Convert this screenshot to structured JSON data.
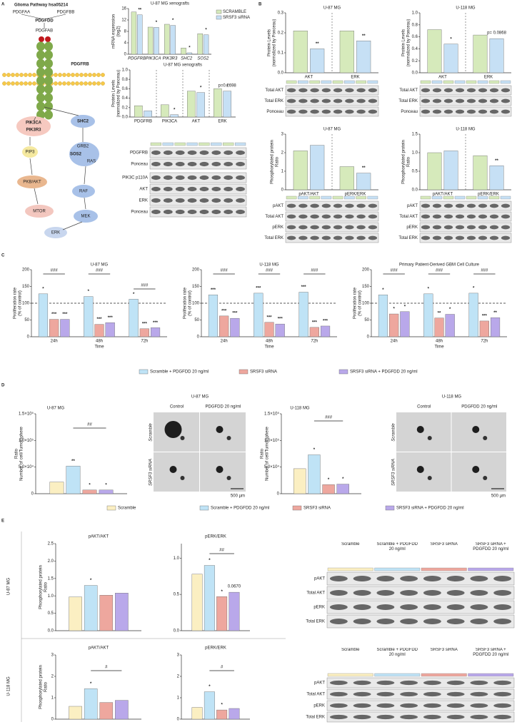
{
  "panels": [
    "A",
    "B",
    "C",
    "D",
    "E"
  ],
  "pathway": {
    "title": "Glioma Pathway hsa05214",
    "nodes": [
      "PDGFAA",
      "PDGFBB",
      "PDGFDD",
      "PDGFAB",
      "PDGFRB",
      "PIK3CA",
      "PIK3R3",
      "SHC2",
      "PIP3",
      "GRB2",
      "SOS2",
      "RAS",
      "PKB/AKT",
      "RAF",
      "MTOR",
      "MEK",
      "ERK"
    ]
  },
  "blots": [
    {
      "rows": [
        "PDGFRB",
        "Ponceau"
      ]
    },
    {
      "rows": [
        "PIK3C p110A",
        "AKT",
        "ERK",
        "Ponceau"
      ]
    },
    {
      "rows": [
        "Total AKT",
        "Total ERK",
        "Ponceau"
      ]
    },
    {
      "rows": [
        "Total AKT",
        "Total ERK",
        "Ponceau"
      ]
    },
    {
      "rows": [
        "pAKT",
        "Total AKT",
        "pERK",
        "Total ERK"
      ]
    },
    {
      "rows": [
        "pAKT",
        "Total AKT",
        "pERK",
        "Total ERK"
      ]
    },
    {
      "lanes": [
        "Scramble",
        "Scramble + PDGFDD 20 ng/ml",
        "SRSF3 siRNA",
        "SRSF3 siRNA + PDGFDD 20 ng/ml"
      ],
      "rows": [
        "pAKT",
        "Total AKT",
        "pERK",
        "Total ERK"
      ]
    },
    {
      "lanes": [
        "Scramble",
        "Scramble + PDGFDD 20 ng/ml",
        "SRSF3 siRNA",
        "SRSF3 siRNA + PDGFDD 20 ng/ml"
      ],
      "rows": [
        "pAKT",
        "Total AKT",
        "pERK",
        "Total ERK"
      ]
    }
  ],
  "spheres": [
    {
      "title": "U-87 MG",
      "cols": [
        "Control",
        "PDGFDD 20 ng/ml"
      ],
      "rows": [
        "Scramble",
        "SRSF3 siRNA"
      ],
      "scale": "500 µm"
    },
    {
      "title": "U-118 MG",
      "cols": [
        "Control",
        "PDGFDD 20 ng/ml"
      ],
      "rows": [
        "Scramble",
        "SRSF3 siRNA"
      ],
      "scale": "500 µm"
    }
  ],
  "row_labels": [
    "U-87 MG",
    "U-118 MG"
  ],
  "chart_data": [
    {
      "type": "bar",
      "title": "U-87 MG xenografts",
      "ylabel": [
        "mRNA expression",
        "(log2)"
      ],
      "categories": [
        "PDGFRB",
        "PIK3CA",
        "PIK3R3",
        "SHC2",
        "SOS2"
      ],
      "ylim": [
        0,
        16
      ],
      "yticks": [
        0,
        4,
        8,
        12,
        16
      ],
      "series": [
        {
          "name": "SCRAMBLE",
          "color": "#d6eabb",
          "values": [
            14.8,
            9.5,
            10.5,
            2.2,
            7.2
          ],
          "significance": [
            null,
            null,
            null,
            null,
            null
          ]
        },
        {
          "name": "SRSF3 siRNA",
          "color": "#c6e0f5",
          "values": [
            13.8,
            9.4,
            10.1,
            0.5,
            6.8
          ],
          "significance": [
            "**",
            "*",
            "*",
            "*",
            "*"
          ]
        }
      ]
    },
    {
      "type": "bar",
      "title": "U-87 MG xenografts",
      "ylabel": [
        "Protein Levels",
        "(normalized by Ponceau)"
      ],
      "categories": [
        "PDGFRB",
        "PIK3CA",
        "AKT",
        "ERK"
      ],
      "ylim": [
        0,
        1
      ],
      "yticks": [
        {
          "value": 0,
          "label": "0.0"
        },
        {
          "value": 0.2,
          "label": "0.2"
        },
        {
          "value": 0.4,
          "label": "0.4"
        },
        {
          "value": 0.6,
          "label": "0.6"
        },
        {
          "value": 0.8,
          "label": "0.8"
        },
        {
          "value": 1,
          "label": "1.0"
        }
      ],
      "note": "p=0.2698",
      "series": [
        {
          "name": "SCRAMBLE",
          "color": "#d6eabb",
          "values": [
            0.24,
            0.26,
            0.55,
            0.6
          ],
          "significance": [
            null,
            null,
            null,
            null
          ]
        },
        {
          "name": "SRSF3 siRNA",
          "color": "#c6e0f5",
          "values": [
            0.13,
            0.05,
            0.52,
            0.55
          ],
          "significance": [
            null,
            "*",
            "*",
            "*"
          ]
        }
      ]
    },
    {
      "type": "bar",
      "title": "U-87 MG",
      "ylabel": [
        "Protein Levels",
        "(normalized by Ponceau)"
      ],
      "categories": [
        "AKT",
        "ERK"
      ],
      "ylim": [
        0,
        0.3
      ],
      "yticks": [
        {
          "value": 0,
          "label": "0.0"
        },
        0.1,
        0.2,
        0.3
      ],
      "series": [
        {
          "name": "SCRAMBLE",
          "color": "#d6eabb",
          "values": [
            0.21,
            0.21
          ],
          "significance": [
            null,
            null
          ]
        },
        {
          "name": "SRSF3 siRNA",
          "color": "#c6e0f5",
          "values": [
            0.12,
            0.16
          ],
          "significance": [
            "**",
            "**"
          ]
        }
      ]
    },
    {
      "type": "bar",
      "title": "U-118 MG",
      "ylabel": [
        "Protein Levels",
        "(normalized by Ponceau)"
      ],
      "categories": [
        "AKT",
        "ERK"
      ],
      "ylim": [
        0,
        1
      ],
      "yticks": [
        {
          "value": 0,
          "label": "0.0"
        },
        0.2,
        0.4,
        0.6,
        0.8,
        {
          "value": 1,
          "label": "1.0"
        }
      ],
      "note": "p= 0.0868",
      "series": [
        {
          "name": "SCRAMBLE",
          "color": "#d6eabb",
          "values": [
            0.72,
            0.63
          ],
          "significance": [
            null,
            null
          ]
        },
        {
          "name": "SRSF3 siRNA",
          "color": "#c6e0f5",
          "values": [
            0.48,
            0.57
          ],
          "significance": [
            "*",
            null
          ]
        }
      ]
    },
    {
      "type": "bar",
      "title": "U-87 MG",
      "ylabel": [
        "Phosphorylated protein",
        "Ratio"
      ],
      "categories": [
        "pAKT/AKT",
        "pERK/ERK"
      ],
      "ylim": [
        0,
        3
      ],
      "yticks": [
        0,
        1,
        2,
        3
      ],
      "series": [
        {
          "name": "SCRAMBLE",
          "color": "#d6eabb",
          "values": [
            2.1,
            1.25
          ],
          "significance": [
            null,
            null
          ]
        },
        {
          "name": "SRSF3 siRNA",
          "color": "#c6e0f5",
          "values": [
            2.4,
            0.9
          ],
          "significance": [
            null,
            "**"
          ]
        }
      ]
    },
    {
      "type": "bar",
      "title": "U-118 MG",
      "ylabel": [
        "Phosphorylated protein",
        "Ratio"
      ],
      "categories": [
        "pAKT/AKT",
        "pERK/ERK"
      ],
      "ylim": [
        0,
        1.5
      ],
      "yticks": [
        {
          "value": 0,
          "label": "0.0"
        },
        0.5,
        {
          "value": 1,
          "label": "1.0"
        },
        1.5
      ],
      "series": [
        {
          "name": "SCRAMBLE",
          "color": "#d6eabb",
          "values": [
            1.0,
            0.92
          ],
          "significance": [
            null,
            null
          ]
        },
        {
          "name": "SRSF3 siRNA",
          "color": "#c6e0f5",
          "values": [
            1.05,
            0.65
          ],
          "significance": [
            null,
            "**"
          ]
        }
      ]
    },
    {
      "type": "bar",
      "title": "U-87 MG",
      "ylabel": [
        "Proliferation rate",
        "(% of control)"
      ],
      "xlabel": "Time",
      "categories": [
        "24h",
        "48h",
        "72h"
      ],
      "ylim": [
        0,
        200
      ],
      "yticks": [
        0,
        50,
        100,
        150,
        200
      ],
      "refline": 100,
      "brackets": [
        "###",
        "###",
        "###"
      ],
      "series": [
        {
          "name": "Scramble + PDGFDD 20 ng/ml",
          "color": "#bfe3f6",
          "values": [
            128,
            120,
            112
          ],
          "significance": [
            "*",
            "*",
            "*"
          ]
        },
        {
          "name": "SRSF3 siRNA",
          "color": "#eea79e",
          "values": [
            52,
            37,
            24
          ],
          "significance": [
            "***",
            "***",
            "***"
          ]
        },
        {
          "name": "SRSF3 siRNA + PDGFDD 20 ng/ml",
          "color": "#b9a8ea",
          "values": [
            52,
            42,
            27
          ],
          "significance": [
            "***",
            "***",
            "***"
          ]
        }
      ]
    },
    {
      "type": "bar",
      "title": "U-118 MG",
      "ylabel": [
        "Proliferation rate",
        "(% of control)"
      ],
      "xlabel": "Time",
      "categories": [
        "24h",
        "48h",
        "72h"
      ],
      "ylim": [
        0,
        200
      ],
      "yticks": [
        0,
        50,
        100,
        150,
        200
      ],
      "refline": 100,
      "brackets": [
        "###",
        "###",
        "###"
      ],
      "series": [
        {
          "name": "Scramble + PDGFDD 20 ng/ml",
          "color": "#bfe3f6",
          "values": [
            125,
            130,
            133
          ],
          "significance": [
            "***",
            "***",
            "***"
          ]
        },
        {
          "name": "SRSF3 siRNA",
          "color": "#eea79e",
          "values": [
            62,
            43,
            28
          ],
          "significance": [
            "***",
            "***",
            "***"
          ]
        },
        {
          "name": "SRSF3 siRNA + PDGFDD 20 ng/ml",
          "color": "#b9a8ea",
          "values": [
            55,
            38,
            32
          ],
          "significance": [
            "***",
            "***",
            "***"
          ]
        }
      ]
    },
    {
      "type": "bar",
      "title": "Primary Patient-Derived GBM Cell Culture",
      "ylabel": [
        "Proliferation rate",
        "(% of control)"
      ],
      "xlabel": "Time",
      "categories": [
        "24h",
        "48h",
        "72h"
      ],
      "ylim": [
        0,
        200
      ],
      "yticks": [
        0,
        50,
        100,
        150,
        200
      ],
      "refline": 100,
      "brackets": [
        "###",
        "###",
        "###"
      ],
      "series": [
        {
          "name": "Scramble + PDGFDD 20 ng/ml",
          "color": "#bfe3f6",
          "values": [
            125,
            128,
            130
          ],
          "significance": [
            "*",
            "*",
            "*"
          ]
        },
        {
          "name": "SRSF3 siRNA",
          "color": "#eea79e",
          "values": [
            68,
            56,
            47
          ],
          "significance": [
            "*",
            "**",
            "***"
          ]
        },
        {
          "name": "SRSF3 siRNA + PDGFDD 20 ng/ml",
          "color": "#b9a8ea",
          "values": [
            75,
            67,
            57
          ],
          "significance": [
            "*",
            "*",
            "**"
          ]
        }
      ]
    },
    {
      "type": "bar",
      "title": "U-87 MG",
      "ylabel": [
        "Ratio",
        "Number of cell/Tumorsphere"
      ],
      "categories": [
        null
      ],
      "ylim": [
        0,
        150000
      ],
      "yticks": [
        0,
        {
          "value": 50000,
          "label": "5.0×10⁴"
        },
        {
          "value": 100000,
          "label": "1.0×10⁵"
        },
        {
          "value": 150000,
          "label": "1.5×10⁵"
        }
      ],
      "brackets": [
        "##"
      ],
      "series": [
        {
          "name": "Scramble",
          "color": "#fbefc2",
          "values": [
            22000
          ],
          "significance": [
            null
          ]
        },
        {
          "name": "Scramble + PDGFDD 20 ng/ml",
          "color": "#bfe3f6",
          "values": [
            52000
          ],
          "significance": [
            "**"
          ]
        },
        {
          "name": "SRSF3 siRNA",
          "color": "#eea79e",
          "values": [
            7000
          ],
          "significance": [
            "*"
          ]
        },
        {
          "name": "SRSF3 siRNA + PDGFDD 20 ng/ml",
          "color": "#b9a8ea",
          "values": [
            7000
          ],
          "significance": [
            "*"
          ]
        }
      ]
    },
    {
      "type": "bar",
      "title": "U-118 MG",
      "ylabel": [
        "Ratio",
        "Number of cell/Tumorsphere"
      ],
      "categories": [
        null
      ],
      "ylim": [
        0,
        150000
      ],
      "yticks": [
        0,
        {
          "value": 50000,
          "label": "5.0×10⁴"
        },
        {
          "value": 100000,
          "label": "1.0×10⁵"
        },
        {
          "value": 150000,
          "label": "1.5×10⁵"
        }
      ],
      "brackets": [
        "###"
      ],
      "series": [
        {
          "name": "Scramble",
          "color": "#fbefc2",
          "values": [
            47000
          ],
          "significance": [
            null
          ]
        },
        {
          "name": "Scramble + PDGFDD 20 ng/ml",
          "color": "#bfe3f6",
          "values": [
            73000
          ],
          "significance": [
            "*"
          ]
        },
        {
          "name": "SRSF3 siRNA",
          "color": "#eea79e",
          "values": [
            17000
          ],
          "significance": [
            "*"
          ]
        },
        {
          "name": "SRSF3 siRNA + PDGFDD 20 ng/ml",
          "color": "#b9a8ea",
          "values": [
            18000
          ],
          "significance": [
            "*"
          ]
        }
      ]
    },
    {
      "type": "bar",
      "title": "pAKT/AKT",
      "ylabel": [
        "Phosphorylated protein",
        "Ratio"
      ],
      "categories": [
        null
      ],
      "ylim": [
        0,
        2.5
      ],
      "yticks": [
        {
          "value": 0,
          "label": "0.0"
        },
        0.5,
        {
          "value": 1,
          "label": "1.0"
        },
        1.5,
        {
          "value": 2,
          "label": "2.0"
        },
        2.5
      ],
      "series": [
        {
          "name": "Scramble",
          "color": "#fbefc2",
          "values": [
            0.97
          ],
          "significance": [
            null
          ]
        },
        {
          "name": "Scramble + PDGFDD 20 ng/ml",
          "color": "#bfe3f6",
          "values": [
            1.3
          ],
          "significance": [
            "*"
          ]
        },
        {
          "name": "SRSF3 siRNA",
          "color": "#eea79e",
          "values": [
            1.02
          ],
          "significance": [
            null
          ]
        },
        {
          "name": "SRSF3 siRNA + PDGFDD 20 ng/ml",
          "color": "#b9a8ea",
          "values": [
            1.08
          ],
          "significance": [
            null
          ]
        }
      ]
    },
    {
      "type": "bar",
      "title": "pERK/ERK",
      "categories": [
        null
      ],
      "ylim": [
        0,
        1.2
      ],
      "yticks": [
        {
          "value": 0,
          "label": "0.0"
        },
        0.5,
        {
          "value": 1,
          "label": "1.0"
        }
      ],
      "brackets": [
        "##"
      ],
      "note": "0.0670",
      "series": [
        {
          "name": "Scramble",
          "color": "#fbefc2",
          "values": [
            0.78
          ],
          "significance": [
            null
          ]
        },
        {
          "name": "Scramble + PDGFDD 20 ng/ml",
          "color": "#bfe3f6",
          "values": [
            0.9
          ],
          "significance": [
            "*"
          ]
        },
        {
          "name": "SRSF3 siRNA",
          "color": "#eea79e",
          "values": [
            0.47
          ],
          "significance": [
            "*"
          ]
        },
        {
          "name": "SRSF3 siRNA + PDGFDD 20 ng/ml",
          "color": "#b9a8ea",
          "values": [
            0.53
          ],
          "significance": [
            null
          ]
        }
      ]
    },
    {
      "type": "bar",
      "title": "pAKT/AKT",
      "ylabel": [
        "Phosphorylated protein",
        "Ratio"
      ],
      "categories": [
        null
      ],
      "ylim": [
        0,
        3
      ],
      "yticks": [
        0,
        1,
        2,
        3
      ],
      "brackets": [
        "#"
      ],
      "series": [
        {
          "name": "Scramble",
          "color": "#fbefc2",
          "values": [
            0.6
          ],
          "significance": [
            null
          ]
        },
        {
          "name": "Scramble + PDGFDD 20 ng/ml",
          "color": "#bfe3f6",
          "values": [
            1.42
          ],
          "significance": [
            "*"
          ]
        },
        {
          "name": "SRSF3 siRNA",
          "color": "#eea79e",
          "values": [
            0.78
          ],
          "significance": [
            null
          ]
        },
        {
          "name": "SRSF3 siRNA + PDGFDD 20 ng/ml",
          "color": "#b9a8ea",
          "values": [
            0.88
          ],
          "significance": [
            null
          ]
        }
      ]
    },
    {
      "type": "bar",
      "title": "pERK/ERK",
      "categories": [
        null
      ],
      "ylim": [
        0,
        3
      ],
      "yticks": [
        0,
        1,
        2,
        3
      ],
      "brackets": [
        "#"
      ],
      "series": [
        {
          "name": "Scramble",
          "color": "#fbefc2",
          "values": [
            0.55
          ],
          "significance": [
            null
          ]
        },
        {
          "name": "Scramble + PDGFDD 20 ng/ml",
          "color": "#bfe3f6",
          "values": [
            1.28
          ],
          "significance": [
            "*"
          ]
        },
        {
          "name": "SRSF3 siRNA",
          "color": "#eea79e",
          "values": [
            0.43
          ],
          "significance": [
            "*"
          ]
        },
        {
          "name": "SRSF3 siRNA + PDGFDD 20 ng/ml",
          "color": "#b9a8ea",
          "values": [
            0.5
          ],
          "significance": [
            null
          ]
        }
      ]
    }
  ]
}
